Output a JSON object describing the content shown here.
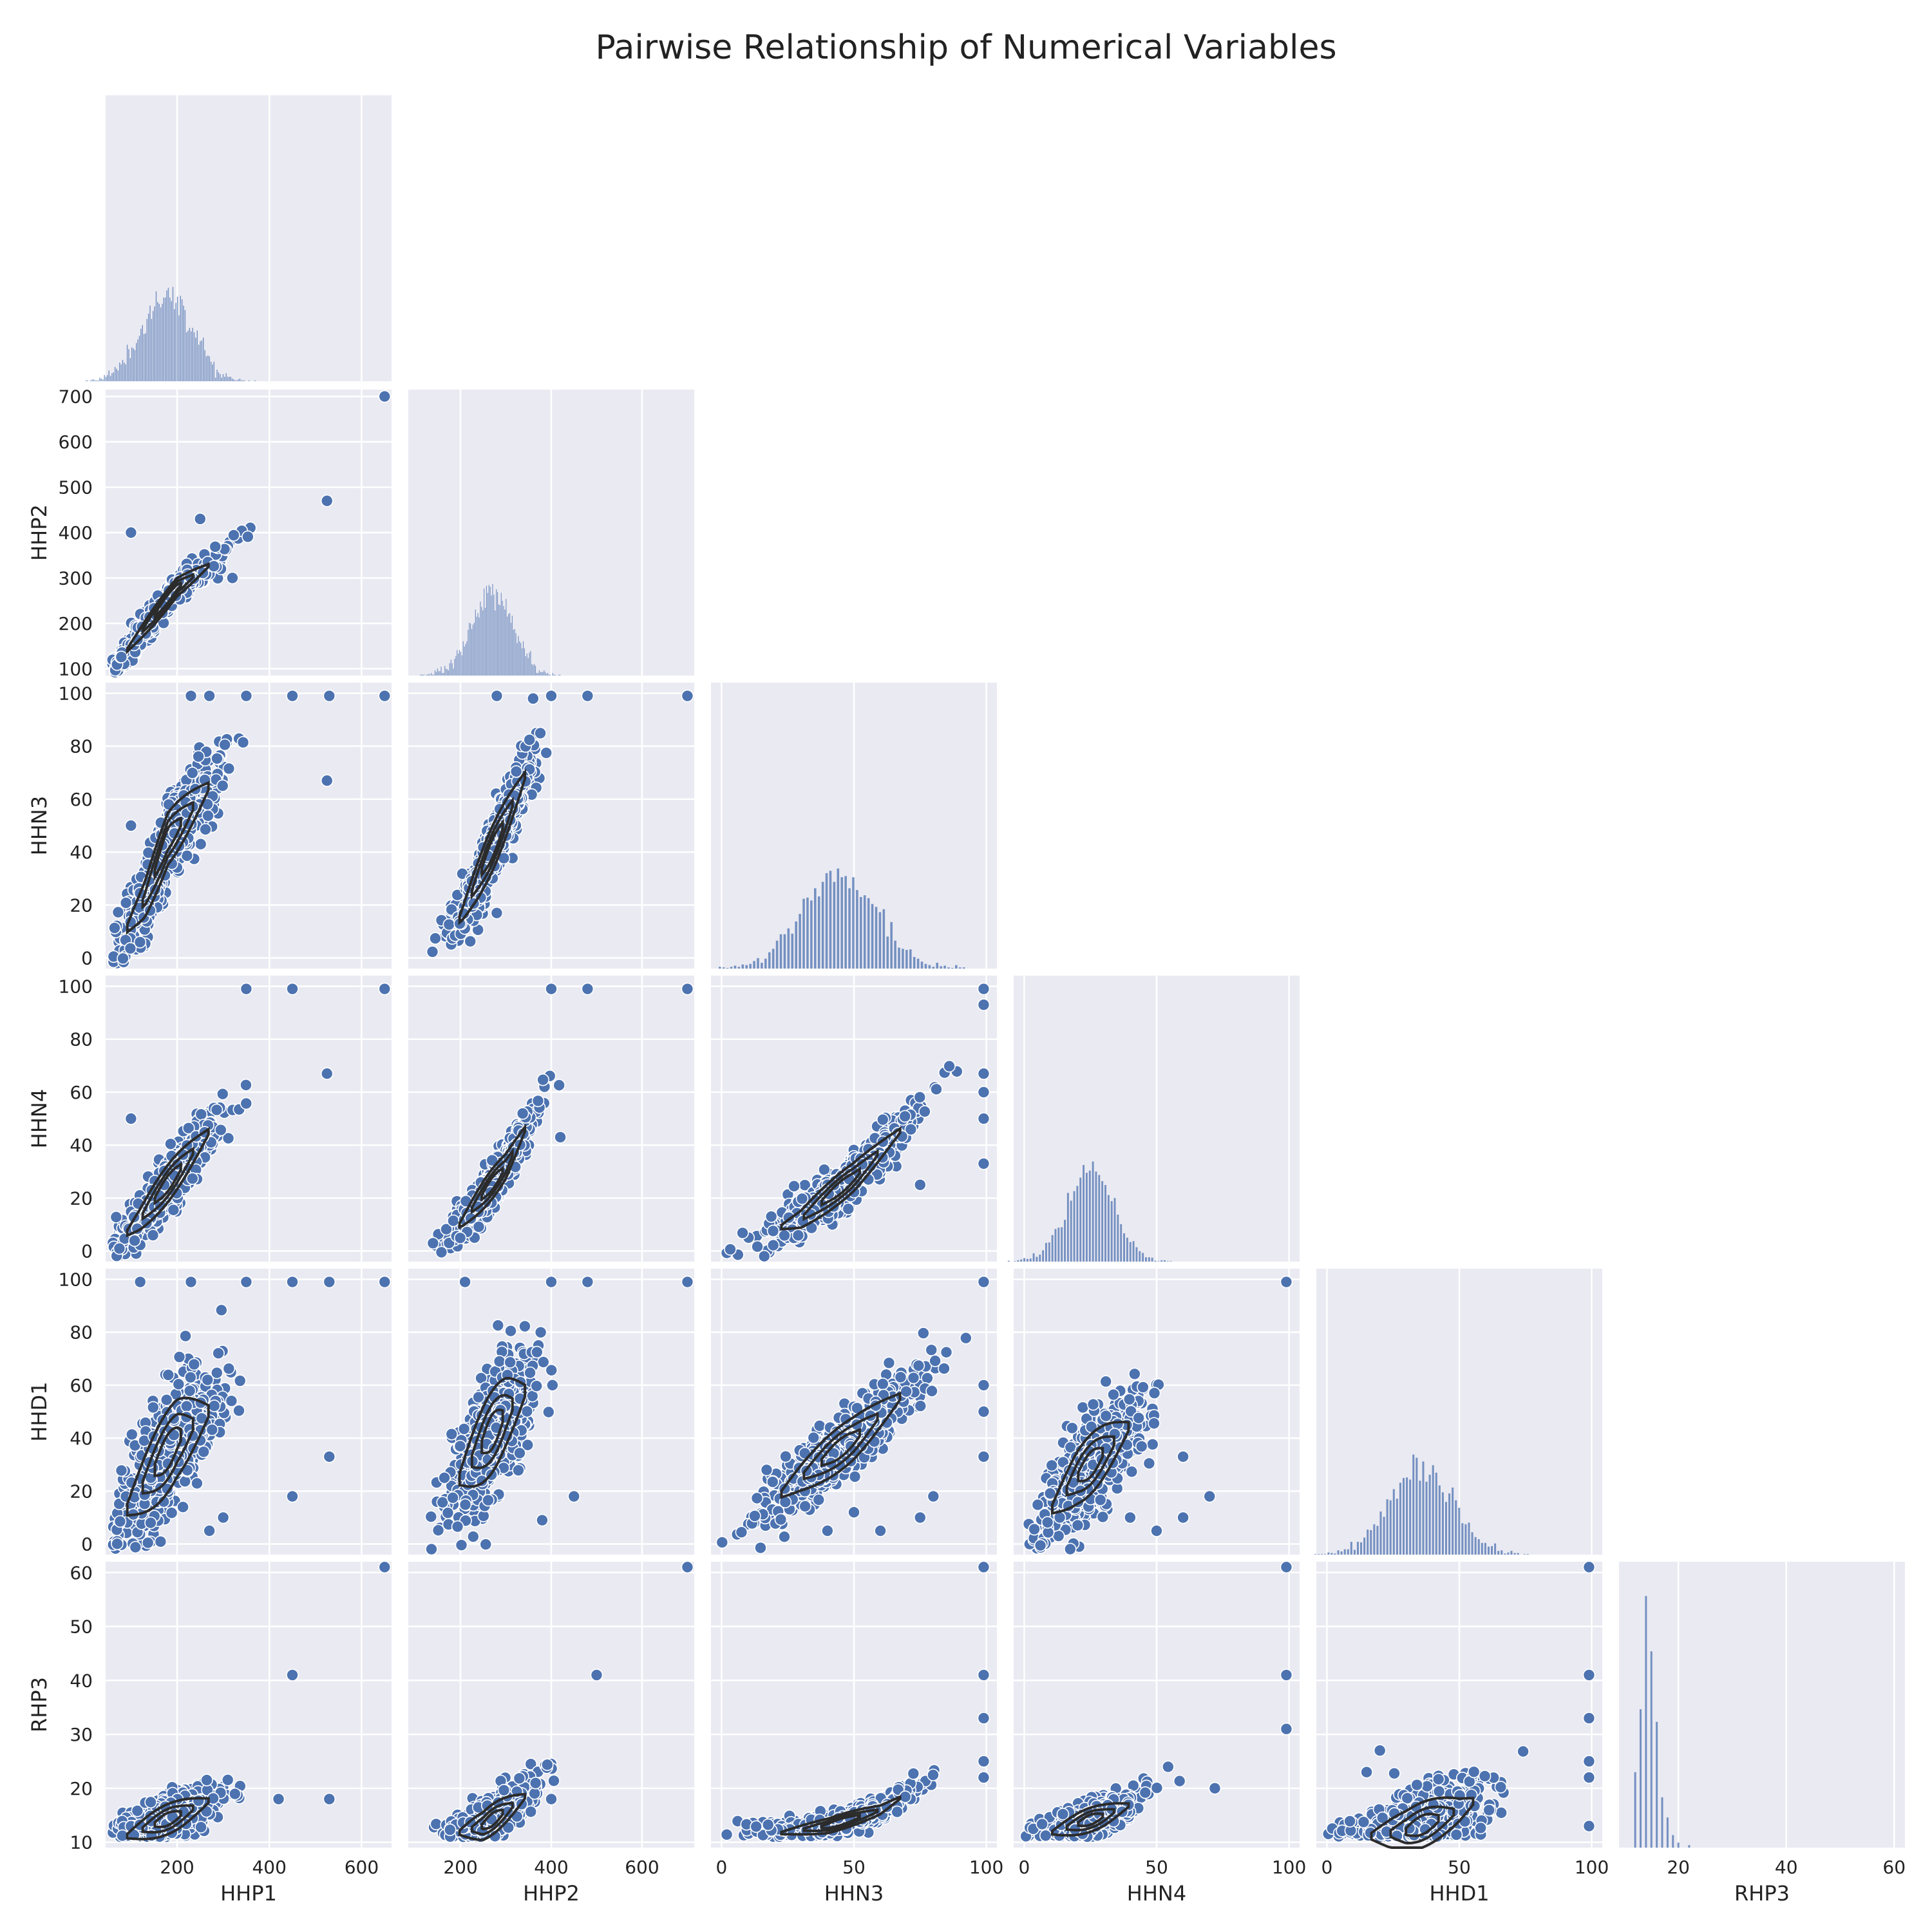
{
  "title": "Pairwise Relationship of Numerical Variables",
  "colors": {
    "panel_bg": "#eaeaf2",
    "grid": "#ffffff",
    "point": "#4c72b0",
    "point_edge": "#ffffff",
    "hist": "#4c72b0",
    "kde": "#2b2b2b",
    "text": "#222222"
  },
  "chart_data": {
    "type": "pairplot",
    "layout": "corner (lower triangle), histograms on diagonal, scatter with KDE contours below",
    "variables": [
      "HHP1",
      "HHP2",
      "HHN3",
      "HHN4",
      "HHD1",
      "RHP3"
    ],
    "axes": {
      "HHP1": {
        "label": "HHP1",
        "range": [
          45,
          665
        ],
        "ticks": [
          200,
          400,
          600
        ]
      },
      "HHP2": {
        "label": "HHP2",
        "range": [
          85,
          715
        ],
        "ticks": [
          100,
          200,
          300,
          400,
          500,
          600,
          700
        ],
        "x_ticks": [
          200,
          400,
          600
        ]
      },
      "HHN3": {
        "label": "HHN3",
        "range": [
          -4,
          104
        ],
        "ticks": [
          0,
          20,
          40,
          60,
          80,
          100
        ],
        "x_ticks": [
          0,
          50,
          100
        ]
      },
      "HHN4": {
        "label": "HHN4",
        "range": [
          -4,
          104
        ],
        "ticks": [
          0,
          20,
          40,
          60,
          80,
          100
        ],
        "x_ticks": [
          0,
          50,
          100
        ]
      },
      "HHD1": {
        "label": "HHD1",
        "range": [
          -4,
          104
        ],
        "ticks": [
          0,
          20,
          40,
          60,
          80,
          100
        ],
        "x_ticks": [
          0,
          50,
          100
        ]
      },
      "RHP3": {
        "label": "RHP3",
        "range": [
          9,
          62
        ],
        "ticks": [
          10,
          20,
          30,
          40,
          50,
          60
        ],
        "x_ticks": [
          20,
          40,
          60
        ]
      }
    },
    "diagonal_histograms": {
      "HHP1": {
        "center": 180,
        "spread": 55,
        "bins": 120
      },
      "HHP2": {
        "center": 270,
        "spread": 45,
        "bins": 120
      },
      "HHN3": {
        "center": 45,
        "spread": 14,
        "bins": 70
      },
      "HHN4": {
        "center": 25,
        "spread": 9,
        "bins": 55
      },
      "HHD1": {
        "center": 36,
        "spread": 12,
        "bins": 70
      },
      "RHP3": {
        "peaks": [
          [
            12,
            0.3
          ],
          [
            13,
            0.55
          ],
          [
            14,
            1.0
          ],
          [
            15,
            0.78
          ],
          [
            16,
            0.5
          ],
          [
            17,
            0.2
          ],
          [
            18,
            0.12
          ],
          [
            19,
            0.05
          ],
          [
            20,
            0.02
          ],
          [
            22,
            0.01
          ]
        ]
      }
    },
    "relationships": {
      "HHP2|HHP1": {
        "trend": [
          [
            60,
            100
          ],
          [
            200,
            280
          ],
          [
            300,
            350
          ],
          [
            450,
            480
          ],
          [
            530,
            520
          ]
        ],
        "noise": 15,
        "outliers": [
          [
            650,
            700
          ],
          [
            100,
            400
          ],
          [
            250,
            430
          ],
          [
            320,
            300
          ],
          [
            525,
            470
          ]
        ]
      },
      "HHN3|HHP1": {
        "trend": [
          [
            60,
            2
          ],
          [
            130,
            22
          ],
          [
            180,
            45
          ],
          [
            300,
            72
          ],
          [
            400,
            82
          ],
          [
            530,
            88
          ]
        ],
        "noise": 7,
        "outliers": [
          [
            230,
            99
          ],
          [
            270,
            99
          ],
          [
            350,
            99
          ],
          [
            450,
            99
          ],
          [
            530,
            99
          ],
          [
            650,
            99
          ],
          [
            525,
            67
          ],
          [
            100,
            50
          ]
        ]
      },
      "HHN4|HHP1": {
        "trend": [
          [
            60,
            1
          ],
          [
            120,
            12
          ],
          [
            200,
            30
          ],
          [
            300,
            52
          ],
          [
            400,
            66
          ],
          [
            530,
            75
          ]
        ],
        "noise": 5,
        "outliers": [
          [
            350,
            99
          ],
          [
            450,
            99
          ],
          [
            650,
            99
          ],
          [
            100,
            50
          ],
          [
            525,
            67
          ]
        ]
      },
      "HHD1|HHP1": {
        "trend": [
          [
            60,
            5
          ],
          [
            200,
            40
          ],
          [
            300,
            55
          ],
          [
            400,
            70
          ],
          [
            530,
            75
          ]
        ],
        "noise": 11,
        "outliers": [
          [
            120,
            99
          ],
          [
            230,
            99
          ],
          [
            350,
            99
          ],
          [
            450,
            99
          ],
          [
            530,
            99
          ],
          [
            650,
            99
          ],
          [
            450,
            18
          ],
          [
            530,
            33
          ],
          [
            270,
            5
          ],
          [
            300,
            10
          ]
        ]
      },
      "RHP3|HHP1": {
        "trend": [
          [
            60,
            10
          ],
          [
            200,
            15
          ],
          [
            300,
            19
          ],
          [
            400,
            24
          ],
          [
            530,
            29
          ]
        ],
        "noise": 2,
        "outliers": [
          [
            650,
            61
          ],
          [
            450,
            41
          ],
          [
            530,
            18
          ],
          [
            420,
            18
          ]
        ]
      },
      "HHN3|HHP2": {
        "trend": [
          [
            120,
            0
          ],
          [
            200,
            15
          ],
          [
            280,
            45
          ],
          [
            350,
            72
          ],
          [
            420,
            82
          ],
          [
            500,
            88
          ]
        ],
        "noise": 6,
        "outliers": [
          [
            280,
            99
          ],
          [
            400,
            99
          ],
          [
            700,
            99
          ],
          [
            480,
            99
          ],
          [
            280,
            17
          ],
          [
            360,
            98
          ]
        ]
      },
      "HHN4|HHP2": {
        "trend": [
          [
            120,
            0
          ],
          [
            200,
            10
          ],
          [
            300,
            32
          ],
          [
            360,
            52
          ],
          [
            420,
            65
          ],
          [
            510,
            75
          ]
        ],
        "noise": 4,
        "outliers": [
          [
            400,
            99
          ],
          [
            480,
            99
          ],
          [
            700,
            99
          ],
          [
            420,
            43
          ]
        ]
      },
      "HHD1|HHP2": {
        "trend": [
          [
            120,
            2
          ],
          [
            200,
            25
          ],
          [
            300,
            50
          ],
          [
            380,
            65
          ],
          [
            500,
            72
          ]
        ],
        "noise": 11,
        "outliers": [
          [
            210,
            99
          ],
          [
            400,
            99
          ],
          [
            480,
            99
          ],
          [
            700,
            99
          ],
          [
            450,
            18
          ],
          [
            380,
            9
          ]
        ]
      },
      "RHP3|HHP2": {
        "trend": [
          [
            120,
            10
          ],
          [
            250,
            13
          ],
          [
            350,
            19
          ],
          [
            420,
            24
          ],
          [
            510,
            29
          ]
        ],
        "noise": 2,
        "outliers": [
          [
            700,
            61
          ],
          [
            500,
            41
          ],
          [
            400,
            18
          ]
        ]
      },
      "HHN4|HHN3": {
        "trend": [
          [
            0,
            0
          ],
          [
            30,
            12
          ],
          [
            50,
            28
          ],
          [
            70,
            48
          ],
          [
            90,
            70
          ],
          [
            100,
            80
          ]
        ],
        "noise": 4,
        "outliers": [
          [
            99,
            99
          ],
          [
            99,
            93
          ],
          [
            99,
            67
          ],
          [
            99,
            60
          ],
          [
            99,
            50
          ],
          [
            99,
            33
          ],
          [
            75,
            25
          ]
        ]
      },
      "HHD1|HHN3": {
        "trend": [
          [
            0,
            0
          ],
          [
            30,
            25
          ],
          [
            50,
            40
          ],
          [
            70,
            58
          ],
          [
            100,
            88
          ]
        ],
        "noise": 6,
        "outliers": [
          [
            99,
            99
          ],
          [
            99,
            60
          ],
          [
            99,
            50
          ],
          [
            99,
            33
          ],
          [
            60,
            5
          ],
          [
            75,
            10
          ],
          [
            80,
            18
          ],
          [
            40,
            5
          ],
          [
            50,
            12
          ]
        ]
      },
      "RHP3|HHN3": {
        "trend": [
          [
            0,
            10
          ],
          [
            40,
            13
          ],
          [
            60,
            16
          ],
          [
            80,
            22
          ],
          [
            100,
            29
          ]
        ],
        "noise": 1,
        "outliers": [
          [
            99,
            61
          ],
          [
            99,
            41
          ],
          [
            99,
            33
          ],
          [
            99,
            25
          ],
          [
            99,
            22
          ]
        ]
      },
      "HHD1|HHN4": {
        "trend": [
          [
            0,
            0
          ],
          [
            20,
            25
          ],
          [
            40,
            45
          ],
          [
            60,
            65
          ],
          [
            90,
            90
          ]
        ],
        "noise": 8,
        "outliers": [
          [
            99,
            99
          ],
          [
            50,
            5
          ],
          [
            60,
            10
          ],
          [
            70,
            18
          ],
          [
            60,
            33
          ],
          [
            40,
            10
          ]
        ]
      },
      "RHP3|HHN4": {
        "trend": [
          [
            0,
            10
          ],
          [
            30,
            15
          ],
          [
            50,
            19
          ],
          [
            70,
            25
          ],
          [
            100,
            32
          ]
        ],
        "noise": 1.6,
        "outliers": [
          [
            99,
            61
          ],
          [
            99,
            41
          ],
          [
            99,
            31
          ],
          [
            72,
            20
          ]
        ]
      },
      "RHP3|HHD1": {
        "trend": [
          [
            0,
            10
          ],
          [
            30,
            12
          ],
          [
            50,
            16
          ],
          [
            70,
            22
          ],
          [
            100,
            27
          ]
        ],
        "noise": 3,
        "outliers": [
          [
            99,
            61
          ],
          [
            99,
            41
          ],
          [
            99,
            33
          ],
          [
            99,
            25
          ],
          [
            99,
            22
          ],
          [
            99,
            13
          ],
          [
            20,
            27
          ],
          [
            15,
            23
          ]
        ]
      }
    }
  }
}
